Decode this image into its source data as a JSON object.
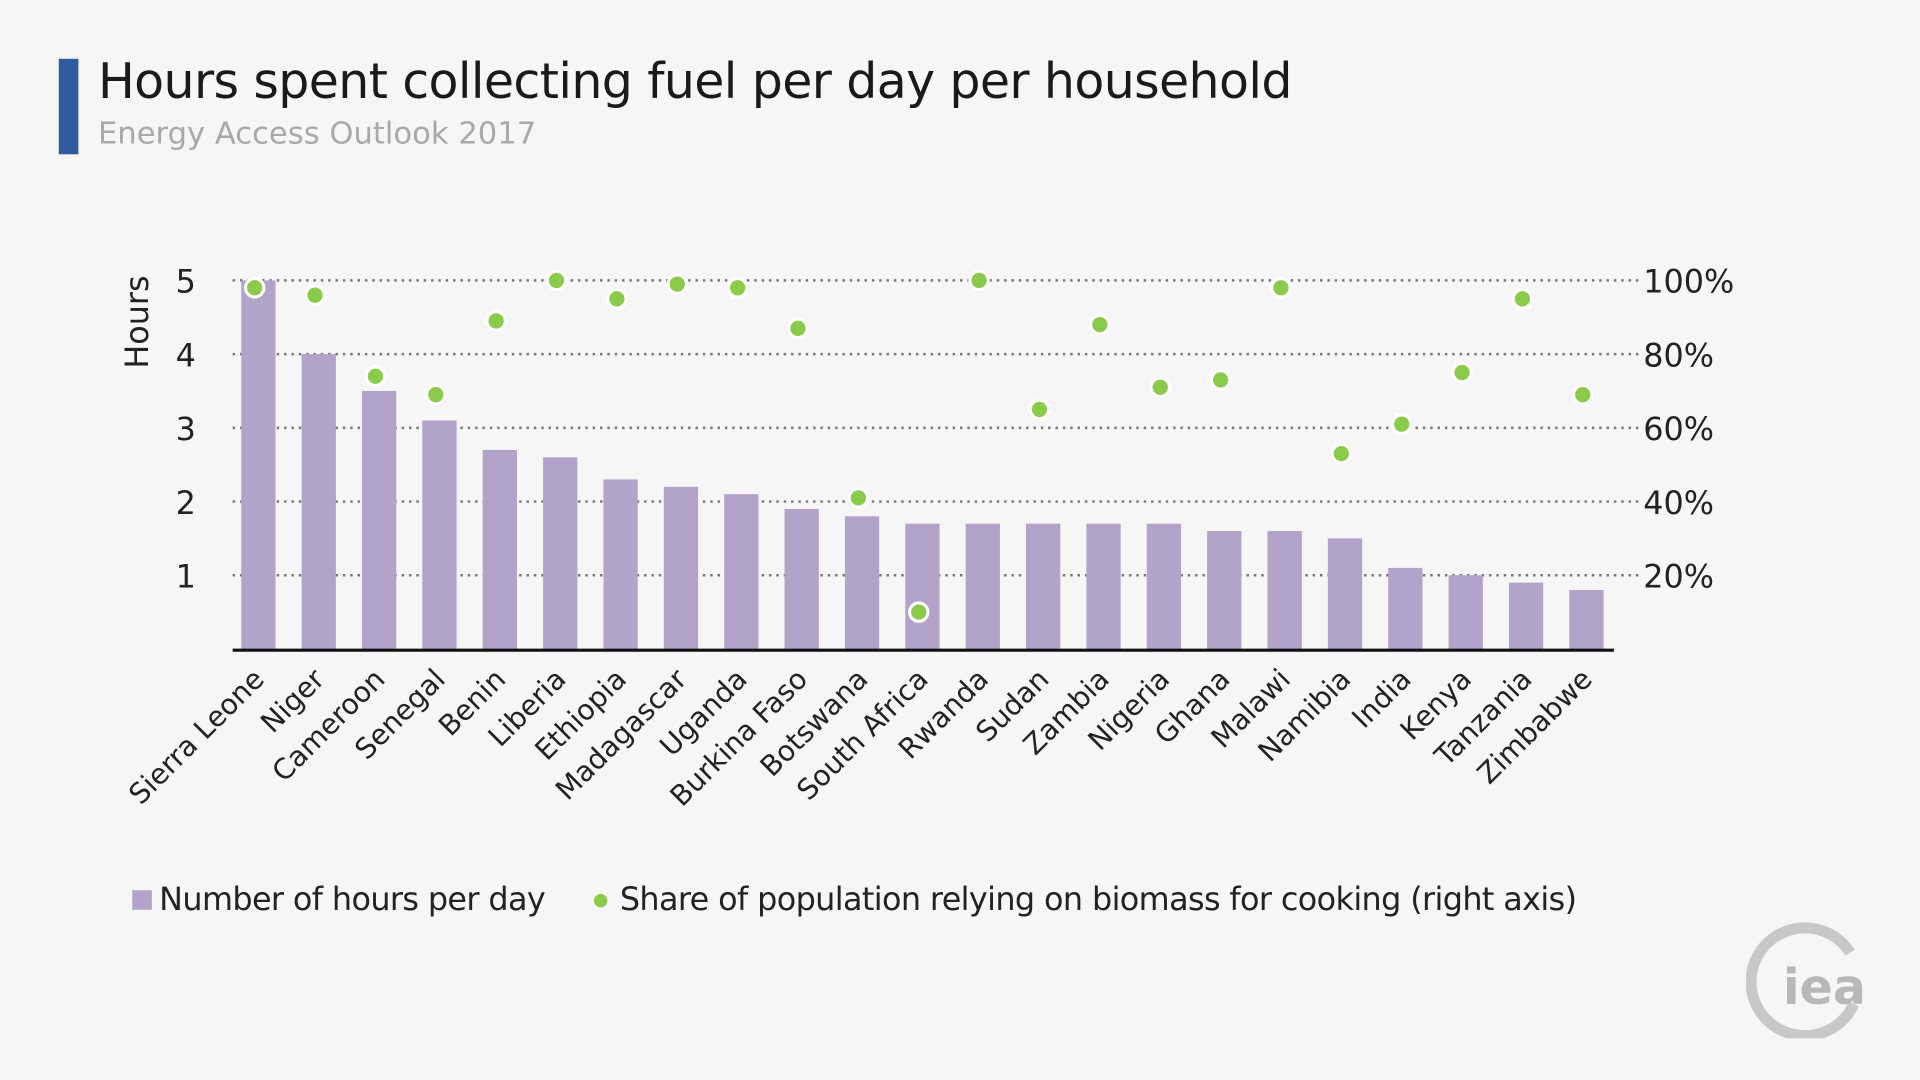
{
  "title": "Hours spent collecting fuel per day per household",
  "subtitle": "Energy Access Outlook 2017",
  "logo_text": "iea",
  "colors": {
    "bars": "#b3a2c9",
    "dots": "#8bcb4b",
    "accent": "#2e5c9e"
  },
  "chart_data": {
    "type": "bar",
    "title": "Hours spent collecting fuel per day per household",
    "ylabel": "Hours",
    "ylim": [
      0,
      5
    ],
    "y2lim": [
      0,
      100
    ],
    "yticks": [
      "1",
      "2",
      "3",
      "4",
      "5"
    ],
    "y2ticks": [
      "20%",
      "40%",
      "60%",
      "80%",
      "100%"
    ],
    "grid": true,
    "legend_placement": "bottom",
    "categories": [
      "Sierra Leone",
      "Niger",
      "Cameroon",
      "Senegal",
      "Benin",
      "Liberia",
      "Ethiopia",
      "Madagascar",
      "Uganda",
      "Burkina Faso",
      "Botswana",
      "South Africa",
      "Rwanda",
      "Sudan",
      "Zambia",
      "Nigeria",
      "Ghana",
      "Malawi",
      "Namibia",
      "India",
      "Kenya",
      "Tanzania",
      "Zimbabwe"
    ],
    "series": [
      {
        "name": "Number of hours per day",
        "type": "bar",
        "axis": "left",
        "values": [
          5.0,
          4.0,
          3.5,
          3.1,
          2.7,
          2.6,
          2.3,
          2.2,
          2.1,
          1.9,
          1.8,
          1.7,
          1.7,
          1.7,
          1.7,
          1.7,
          1.6,
          1.6,
          1.5,
          1.1,
          1.0,
          0.9,
          0.8
        ]
      },
      {
        "name": "Share of population relying on biomass for cooking (right axis)",
        "type": "scatter",
        "axis": "right",
        "values": [
          98,
          96,
          74,
          69,
          89,
          100,
          95,
          99,
          98,
          87,
          41,
          10,
          100,
          65,
          88,
          71,
          73,
          98,
          53,
          61,
          75,
          95,
          69
        ]
      }
    ]
  }
}
